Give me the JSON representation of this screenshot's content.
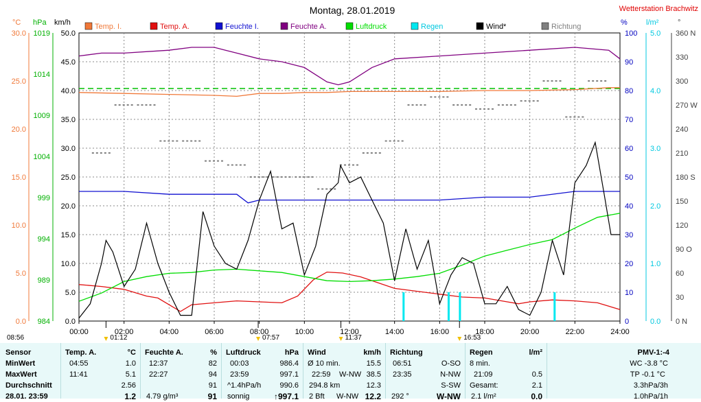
{
  "chart_data": {
    "type": "line",
    "title": "Montag, 28.01.2019",
    "station": "Wetterstation Brachwitz",
    "x_ticks": [
      "00:00",
      "02:00",
      "04:00",
      "06:00",
      "08:00",
      "10:00",
      "12:00",
      "14:00",
      "16:00",
      "18:00",
      "20:00",
      "22:00",
      "24:00"
    ],
    "xlim": [
      0,
      24
    ],
    "axes": {
      "temp_c": {
        "unit": "°C",
        "ylim": [
          0,
          30
        ],
        "ticks": [
          "0.0",
          "5.0",
          "10.0",
          "15.0",
          "20.0",
          "25.0",
          "30.0"
        ],
        "color": "#f07838"
      },
      "pressure_hpa": {
        "unit": "hPa",
        "ylim": [
          984,
          1019
        ],
        "ticks": [
          "984",
          "989",
          "994",
          "999",
          "1004",
          "1009",
          "1014",
          "1019"
        ],
        "color": "#00b000"
      },
      "wind_kmh": {
        "unit": "km/h",
        "ylim": [
          0,
          50
        ],
        "ticks": [
          "0.0",
          "5.0",
          "10.0",
          "15.0",
          "20.0",
          "25.0",
          "30.0",
          "35.0",
          "40.0",
          "45.0",
          "50.0"
        ],
        "color": "#000000"
      },
      "humidity_pct": {
        "unit": "%",
        "ylim": [
          0,
          100
        ],
        "ticks": [
          "0",
          "10",
          "20",
          "30",
          "40",
          "50",
          "60",
          "70",
          "80",
          "90",
          "100"
        ],
        "color": "#0000c0"
      },
      "rain_lm2": {
        "unit": "l/m²",
        "ylim": [
          0,
          5
        ],
        "ticks": [
          "0.0",
          "1.0",
          "2.0",
          "3.0",
          "4.0",
          "5.0"
        ],
        "color": "#00c8e0"
      },
      "direction_deg": {
        "unit": "°",
        "ylim": [
          0,
          360
        ],
        "ticks": [
          "0 N",
          "30",
          "60",
          "90 O",
          "120",
          "150",
          "180 S",
          "210",
          "240",
          "270 W",
          "300",
          "330",
          "360 N"
        ],
        "color": "#404040"
      }
    },
    "legend": [
      {
        "name": "Temp. I.",
        "color": "#f07838"
      },
      {
        "name": "Temp. A.",
        "color": "#e01010"
      },
      {
        "name": "Feuchte I.",
        "color": "#1010d0"
      },
      {
        "name": "Feuchte A.",
        "color": "#800080"
      },
      {
        "name": "Luftdruck",
        "color": "#00dd00"
      },
      {
        "name": "Regen",
        "color": "#00e8f0"
      },
      {
        "name": "Wind*",
        "color": "#000000"
      },
      {
        "name": "Richtung",
        "color": "#808080"
      }
    ],
    "series": [
      {
        "name": "Temp. I.",
        "axis": "temp_c",
        "x": [
          0,
          2,
          4,
          6,
          7,
          8,
          9,
          10,
          11,
          12,
          14,
          16,
          18,
          20,
          22,
          23.5,
          24
        ],
        "values": [
          23.8,
          23.7,
          23.6,
          23.5,
          23.4,
          23.7,
          23.7,
          23.8,
          23.8,
          23.9,
          23.9,
          23.9,
          24.0,
          24.0,
          24.1,
          24.3,
          24.3
        ]
      },
      {
        "name": "Temp. A.",
        "axis": "temp_c",
        "x": [
          0,
          1,
          2,
          3,
          3.5,
          4.5,
          5,
          6,
          7,
          8,
          9,
          9.7,
          10.4,
          11,
          11.7,
          12.5,
          14,
          15,
          16,
          17,
          18,
          19,
          19.5,
          20,
          21,
          22,
          23,
          24
        ],
        "values": [
          3.8,
          3.6,
          3.3,
          2.6,
          2.4,
          1.0,
          1.7,
          1.9,
          2.1,
          2.0,
          1.9,
          2.6,
          4.3,
          5.1,
          5.0,
          4.6,
          3.4,
          3.1,
          2.8,
          2.5,
          2.4,
          2.0,
          1.8,
          2.0,
          2.2,
          2.1,
          1.9,
          1.2
        ]
      },
      {
        "name": "Feuchte I.",
        "axis": "humidity_pct",
        "x": [
          0,
          2,
          4,
          6,
          7,
          7.5,
          8,
          9,
          10,
          12,
          14,
          16,
          18,
          20,
          22,
          24
        ],
        "values": [
          45,
          45,
          44,
          44,
          44,
          41,
          42,
          42,
          42,
          42,
          42,
          42,
          43,
          43,
          45,
          45
        ]
      },
      {
        "name": "Feuchte A.",
        "axis": "humidity_pct",
        "x": [
          0,
          1,
          2,
          4,
          5,
          6,
          6.5,
          7,
          8,
          9,
          10,
          11,
          11.5,
          12,
          13,
          14,
          16,
          18,
          20,
          22,
          23.5,
          24
        ],
        "values": [
          92,
          93,
          93,
          94,
          95,
          95,
          94,
          93,
          91,
          90,
          88,
          83,
          82,
          83,
          88,
          91,
          92,
          93,
          94,
          95,
          94,
          91
        ]
      },
      {
        "name": "Luftdruck",
        "axis": "pressure_hpa",
        "x": [
          0,
          1,
          2,
          3,
          4,
          5,
          6,
          7,
          8,
          9,
          10,
          11,
          12,
          13,
          14,
          15,
          16,
          17,
          18,
          19,
          20,
          21,
          22,
          23,
          24
        ],
        "values": [
          986.4,
          987.4,
          988.8,
          989.4,
          989.8,
          989.9,
          990.2,
          990.3,
          990.1,
          989.9,
          989.4,
          988.9,
          988.8,
          988.9,
          989.1,
          989.4,
          989.8,
          990.8,
          991.9,
          992.6,
          993.3,
          993.9,
          995.3,
          996.6,
          997.1
        ]
      },
      {
        "name": "Wind*",
        "axis": "wind_kmh",
        "x": [
          0,
          0.5,
          1,
          1.2,
          1.5,
          2,
          2.5,
          3,
          3.5,
          4,
          4.5,
          5,
          5.5,
          6,
          6.5,
          7,
          7.5,
          8,
          8.5,
          9,
          9.5,
          10,
          10.5,
          11,
          11.5,
          11.6,
          12,
          12.5,
          13,
          13.5,
          14,
          14.5,
          15,
          15.5,
          16,
          16.5,
          17,
          17.5,
          18,
          18.5,
          19,
          19.5,
          20,
          20.5,
          21,
          21.5,
          22,
          22.5,
          22.9,
          23.3,
          23.6,
          24
        ],
        "values": [
          0.5,
          3,
          10,
          14,
          12,
          6,
          9,
          17,
          10,
          5,
          1,
          1,
          19,
          13,
          10,
          9,
          14,
          21,
          26,
          16,
          17,
          8,
          13,
          22,
          24,
          27,
          24,
          25,
          21,
          17,
          7,
          16,
          9,
          14,
          3,
          8,
          11,
          10,
          3,
          3,
          6,
          2,
          1,
          5,
          14,
          8,
          24,
          27,
          31,
          22,
          15,
          15
        ]
      },
      {
        "name": "Regen",
        "axis": "rain_lm2",
        "type": "bar",
        "x": [
          14.4,
          16.4,
          16.9,
          21.1
        ],
        "values": [
          0.5,
          0.5,
          0.5,
          0.5
        ]
      }
    ],
    "direction_samples": {
      "x": [
        1,
        2,
        3,
        4,
        5,
        6,
        7,
        8,
        9,
        10,
        11,
        12,
        13,
        14,
        15,
        16,
        17,
        18,
        19,
        20,
        21,
        22,
        23
      ],
      "values": [
        210,
        270,
        270,
        225,
        225,
        200,
        195,
        180,
        180,
        180,
        165,
        195,
        210,
        225,
        270,
        280,
        270,
        265,
        270,
        275,
        300,
        255,
        300
      ]
    },
    "time_markers": [
      {
        "label": "08:56",
        "x": 0
      },
      {
        "label": "01:12",
        "x": 1.2
      },
      {
        "label": "07:57",
        "x": 7.95
      },
      {
        "label": "11:37",
        "x": 11.62
      },
      {
        "label": "16:53",
        "x": 16.88
      }
    ],
    "dashed_reference": {
      "value": 80,
      "axis": "humidity_pct",
      "color": "#00c000"
    }
  },
  "stats": {
    "sensor": {
      "header": "Sensor",
      "rows": [
        "MinWert",
        "MaxWert",
        "Durchschnitt",
        "28.01. 23:59"
      ]
    },
    "temp": {
      "header": "Temp. A.",
      "unit": "°C",
      "rows": [
        {
          "time": "04:55",
          "val": "1.0"
        },
        {
          "time": "11:41",
          "val": "5.1"
        },
        {
          "time": "",
          "val": "2.56"
        },
        {
          "time": "",
          "val": "1.2"
        }
      ]
    },
    "humidity": {
      "header": "Feuchte A.",
      "unit": "%",
      "rows": [
        {
          "time": "12:37",
          "val": "82"
        },
        {
          "time": "22:27",
          "val": "94"
        },
        {
          "time": "",
          "val": "91"
        },
        {
          "time": "4.79 g/m³",
          "val": "91"
        }
      ]
    },
    "pressure": {
      "header": "Luftdruck",
      "unit": "hPa",
      "rows": [
        {
          "time": "00:03",
          "val": "986.4"
        },
        {
          "time": "23:59",
          "val": "997.1"
        },
        {
          "time": "^1.4hPa/h",
          "val": "990.6"
        },
        {
          "time": "sonnig",
          "val": "↑997.1"
        }
      ]
    },
    "wind": {
      "header": "Wind",
      "unit": "km/h",
      "rows": [
        {
          "time": "Ø 10 min.",
          "mid": "",
          "val": "15.5"
        },
        {
          "time": "22:59",
          "mid": "W-NW",
          "val": "38.5"
        },
        {
          "time": "294.8 km",
          "mid": "",
          "val": "12.3"
        },
        {
          "time": "2 Bft",
          "mid": "W-NW",
          "val": "12.2"
        }
      ]
    },
    "direction": {
      "header": "Richtung",
      "rows": [
        {
          "time": "06:51",
          "val": "O-SO"
        },
        {
          "time": "23:35",
          "val": "N-NW"
        },
        {
          "time": "",
          "val": "S-SW"
        },
        {
          "time": "292 °",
          "val": "W-NW"
        }
      ]
    },
    "rain": {
      "header": "Regen",
      "unit": "l/m²",
      "rows": [
        {
          "time": "8 min.",
          "val": ""
        },
        {
          "time": "21:09",
          "val": "0.5"
        },
        {
          "time": "Gesamt:",
          "val": "2.1"
        },
        {
          "time": "2.1 l/m²",
          "val": "0.0"
        }
      ]
    },
    "pmv": {
      "header": "PMV-1:-4",
      "rows": [
        "WC -3.8 °C",
        "TP -0.1 °C",
        "3.3hPa/3h",
        "1.0hPa/1h"
      ]
    }
  }
}
